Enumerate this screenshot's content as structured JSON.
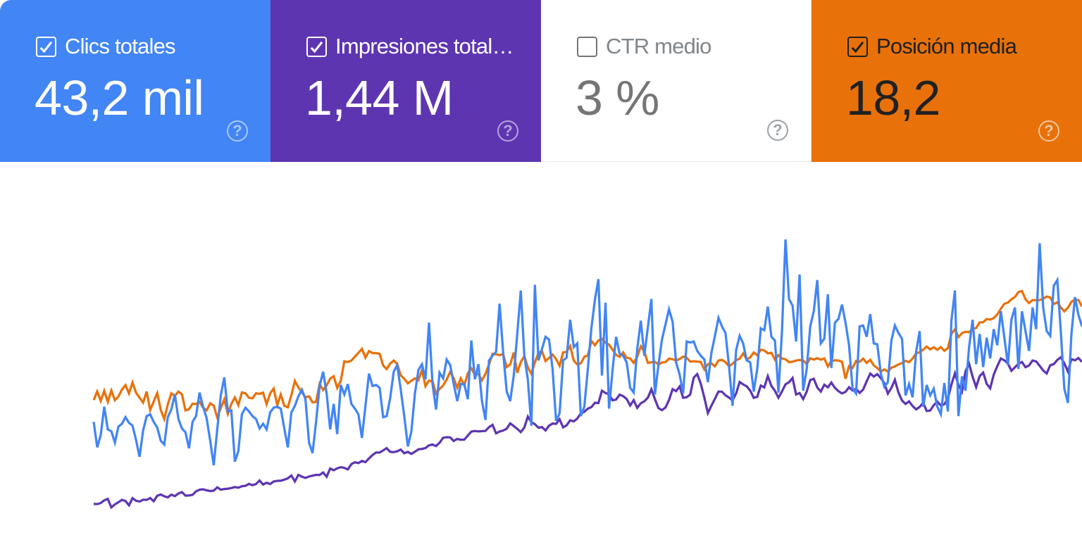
{
  "metric_cards": [
    {
      "label": "Clics totales",
      "value": "43,2 mil",
      "checked": true,
      "color": "#4285f4",
      "help_icon": "?"
    },
    {
      "label": "Impresiones total…",
      "value": "1,44 M",
      "checked": true,
      "color": "#5e35b1",
      "help_icon": "?"
    },
    {
      "label": "CTR medio",
      "value": "3 %",
      "checked": false,
      "color": "#ffffff",
      "help_icon": "?"
    },
    {
      "label": "Posición media",
      "value": "18,2",
      "checked": true,
      "color": "#e8710a",
      "help_icon": "?"
    }
  ],
  "chart_data": {
    "type": "line",
    "x_unit": "day",
    "x_count": 281,
    "grid": false,
    "legend_position": "none",
    "series": [
      {
        "name": "Impresiones totales",
        "color": "#5e35b1",
        "axis": {
          "min": 0,
          "max": 18000,
          "inverted": false
        },
        "values": [
          1720,
          1711,
          1762,
          1888,
          1958,
          1552,
          1695,
          1798,
          1914,
          1857,
          1650,
          1990,
          1870,
          1831,
          1918,
          1911,
          2001,
          1844,
          2110,
          2164,
          2080,
          2030,
          2157,
          2087,
          2214,
          2280,
          2113,
          2122,
          2147,
          2316,
          2392,
          2415,
          2367,
          2329,
          2349,
          2507,
          2395,
          2427,
          2444,
          2475,
          2519,
          2491,
          2561,
          2579,
          2673,
          2610,
          2665,
          2834,
          2640,
          2726,
          2665,
          2785,
          2814,
          2823,
          2874,
          2935,
          3069,
          2790,
          3099,
          3017,
          2954,
          3025,
          3064,
          3101,
          3096,
          3216,
          3011,
          3403,
          3322,
          3411,
          3468,
          3432,
          3361,
          3612,
          3699,
          3659,
          3764,
          3706,
          3882,
          4047,
          4166,
          4166,
          4263,
          4374,
          4196,
          4182,
          4225,
          4303,
          4129,
          4195,
          4101,
          4204,
          4317,
          4336,
          4377,
          4509,
          4547,
          4471,
          4630,
          4869,
          4894,
          4883,
          4717,
          4811,
          4773,
          4779,
          4972,
          5162,
          5193,
          5169,
          5182,
          5193,
          5373,
          5484,
          5078,
          5166,
          5210,
          5301,
          5552,
          5423,
          5293,
          5137,
          5351,
          5875,
          5614,
          5513,
          5346,
          5377,
          5216,
          5445,
          5544,
          5529,
          5745,
          5362,
          5464,
          5702,
          5644,
          5786,
          6027,
          6104,
          6256,
          6325,
          6532,
          6519,
          7108,
          6999,
          6935,
          6654,
          6688,
          6922,
          6850,
          6714,
          6401,
          6658,
          6290,
          6511,
          6604,
          6777,
          7171,
          6709,
          6280,
          6180,
          6307,
          6660,
          7184,
          7091,
          7308,
          6770,
          6799,
          6926,
          7730,
          7902,
          7446,
          6775,
          6045,
          6394,
          6719,
          7067,
          7063,
          6888,
          6782,
          6642,
          6979,
          7521,
          7407,
          7316,
          7114,
          6768,
          6817,
          7353,
          7266,
          7802,
          7334,
          7103,
          6774,
          7074,
          7410,
          7513,
          7714,
          6924,
          6994,
          6712,
          7063,
          7615,
          7678,
          7259,
          7069,
          7390,
          7266,
          7499,
          7241,
          7087,
          6979,
          7053,
          7273,
          7118,
          7204,
          7006,
          7164,
          7551,
          7924,
          7782,
          7898,
          7709,
          7468,
          6972,
          7241,
          7626,
          7025,
          6644,
          6479,
          6601,
          6380,
          6218,
          6334,
          6534,
          6143,
          6164,
          6412,
          6589,
          6403,
          6469,
          6726,
          7394,
          7934,
          7381,
          7058,
          8029,
          8398,
          7772,
          7279,
          7800,
          7971,
          7436,
          7222,
          7873,
          8277,
          8643,
          8554,
          8407,
          8059,
          8224,
          8389,
          8475,
          8230,
          8309,
          8543,
          8504,
          8292,
          8073,
          7929,
          8319,
          8373,
          8572,
          8699,
          8412,
          8019,
          8610,
          8557,
          8661,
          8479
        ]
      },
      {
        "name": "Posición media",
        "color": "#e8710a",
        "axis": {
          "min": 0,
          "max": 32,
          "inverted": true
        },
        "values": [
          20.16,
          19.43,
          20.23,
          19.37,
          20.31,
          19.35,
          20.17,
          19.85,
          19.27,
          18.89,
          19.6,
          18.67,
          19.52,
          19.95,
          20.37,
          19.43,
          21.0,
          20.27,
          19.57,
          20.98,
          21.76,
          20.52,
          19.59,
          19.81,
          19.44,
          19.67,
          21.03,
          20.94,
          20.47,
          20.49,
          20.3,
          20.8,
          21.03,
          20.44,
          20.63,
          21.63,
          20.83,
          20.1,
          21.32,
          20.48,
          19.94,
          20.58,
          19.51,
          19.58,
          19.97,
          20.01,
          19.58,
          19.63,
          19.53,
          20.51,
          19.59,
          19.18,
          20.58,
          19.68,
          20.64,
          20.76,
          19.74,
          18.53,
          19.09,
          19.5,
          19.92,
          19.84,
          20.35,
          20.31,
          18.8,
          19.3,
          18.92,
          18.34,
          18.14,
          19.12,
          18.53,
          16.87,
          16.94,
          16.81,
          16.48,
          16.16,
          15.82,
          16.56,
          16.01,
          16.17,
          16.19,
          16.24,
          17.23,
          17.53,
          17.07,
          16.81,
          17.1,
          18.06,
          18.35,
          18.74,
          18.52,
          18.32,
          18.48,
          17.59,
          18.98,
          18.51,
          18.57,
          19.61,
          19.22,
          18.92,
          18.42,
          17.77,
          18.32,
          19.11,
          18.32,
          18.91,
          17.89,
          17.48,
          18.01,
          17.96,
          18.49,
          17.93,
          17.15,
          16.24,
          16.28,
          16.36,
          16.25,
          17.36,
          17.15,
          16.13,
          17.85,
          16.94,
          16.43,
          17.38,
          17.93,
          16.96,
          16.18,
          16.0,
          16.85,
          16.59,
          16.3,
          16.68,
          17.25,
          16.12,
          16.06,
          15.58,
          16.81,
          17.14,
          17.05,
          16.5,
          16.37,
          15.14,
          15.52,
          15.11,
          14.98,
          15.3,
          15.46,
          15.89,
          16.33,
          16.5,
          16.12,
          16.57,
          16.64,
          17.01,
          16.48,
          15.61,
          16.06,
          17.0,
          16.96,
          16.92,
          17.14,
          16.98,
          16.94,
          16.65,
          16.7,
          16.81,
          16.68,
          16.47,
          16.57,
          16.9,
          16.87,
          16.9,
          16.93,
          17.56,
          17.12,
          17.05,
          17.3,
          16.81,
          16.75,
          16.95,
          17.3,
          17.09,
          16.78,
          16.65,
          16.21,
          16.71,
          16.55,
          16.13,
          16.35,
          15.89,
          15.95,
          16.2,
          16.16,
          16.74,
          16.35,
          16.64,
          16.7,
          16.95,
          16.91,
          16.81,
          16.77,
          16.8,
          17.11,
          16.62,
          16.73,
          16.61,
          16.74,
          16.64,
          17.31,
          16.84,
          16.79,
          16.81,
          16.91,
          18.35,
          17.28,
          17.44,
          16.84,
          16.91,
          16.65,
          17.01,
          16.75,
          17.22,
          17.44,
          17.74,
          17.56,
          17.74,
          17.42,
          17.31,
          17.14,
          17.03,
          16.83,
          16.95,
          16.64,
          16.2,
          16.11,
          15.89,
          15.63,
          15.87,
          15.69,
          15.9,
          15.67,
          15.98,
          15.77,
          14.56,
          14.17,
          14.82,
          14.5,
          14.38,
          14.41,
          14.14,
          14.06,
          13.59,
          13.56,
          13.3,
          13.35,
          13.22,
          12.92,
          12.43,
          12.01,
          11.91,
          11.63,
          11.43,
          11.01,
          10.93,
          11.62,
          11.95,
          11.7,
          11.69,
          11.7,
          11.58,
          11.39,
          11.47,
          12.03,
          11.89,
          12.32,
          12.65,
          12.34,
          11.84,
          11.66,
          11.69,
          12.24
        ]
      },
      {
        "name": "Clics totales",
        "color": "#4285f4",
        "axis": {
          "min": 0,
          "max": 400,
          "inverted": false
        },
        "values": [
          125,
          98,
          111,
          141,
          117,
          115,
          103,
          120,
          123,
          130,
          124,
          121,
          106,
          88,
          116,
          131,
          133,
          125,
          119,
          105,
          101,
          130,
          138,
          154,
          128,
          118,
          114,
          97,
          125,
          131,
          156,
          141,
          129,
          105,
          79,
          117,
          153,
          172,
          136,
          137,
          83,
          94,
          133,
          140,
          136,
          131,
          128,
          118,
          123,
          117,
          135,
          140,
          141,
          139,
          118,
          98,
          135,
          142,
          152,
          159,
          149,
          103,
          92,
          125,
          163,
          178,
          155,
          117,
          144,
          112,
          164,
          154,
          165,
          144,
          139,
          133,
          108,
          142,
          176,
          163,
          164,
          161,
          130,
          131,
          150,
          178,
          185,
          159,
          131,
          99,
          115,
          155,
          180,
          186,
          170,
          230,
          165,
          138,
          177,
          171,
          191,
          185,
          165,
          147,
          165,
          165,
          149,
          211,
          170,
          186,
          147,
          127,
          190,
          195,
          199,
          250,
          199,
          157,
          147,
          174,
          218,
          264,
          195,
          170,
          121,
          270,
          190,
          202,
          215,
          212,
          181,
          126,
          134,
          190,
          193,
          233,
          204,
          208,
          131,
          141,
          181,
          224,
          254,
          276,
          174,
          251,
          139,
          180,
          215,
          197,
          195,
          188,
          161,
          156,
          202,
          232,
          195,
          225,
          255,
          154,
          185,
          212,
          228,
          244,
          231,
          188,
          175,
          155,
          210,
          209,
          210,
          200,
          195,
          191,
          167,
          198,
          216,
          235,
          226,
          219,
          184,
          142,
          201,
          216,
          208,
          190,
          188,
          157,
          181,
          224,
          222,
          247,
          215,
          211,
          156,
          221,
          318,
          255,
          248,
          210,
          281,
          158,
          181,
          226,
          242,
          275,
          208,
          213,
          260,
          182,
          230,
          234,
          249,
          230,
          206,
          160,
          155,
          226,
          227,
          215,
          239,
          208,
          207,
          176,
          162,
          167,
          211,
          227,
          219,
          213,
          153,
          165,
          151,
          199,
          221,
          141,
          164,
          153,
          160,
          141,
          133,
          166,
          136,
          232,
          264,
          131,
          173,
          158,
          204,
          233,
          186,
          218,
          183,
          214,
          192,
          223,
          206,
          242,
          214,
          185,
          233,
          246,
          181,
          242,
          221,
          200,
          246,
          223,
          314,
          246,
          221,
          216,
          269,
          275,
          221,
          160,
          145,
          218,
          257,
          238,
          226
        ]
      }
    ]
  }
}
